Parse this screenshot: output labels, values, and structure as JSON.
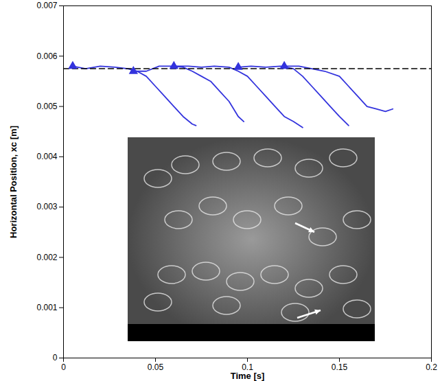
{
  "chart_data": {
    "type": "line",
    "x_label": "Time [s]",
    "y_label": "Horizontal Position, xc [m]",
    "xlim": [
      0,
      0.2
    ],
    "xticks": [
      0,
      0.05,
      0.1,
      0.15,
      0.2
    ],
    "ylim": [
      0,
      0.007
    ],
    "yticks": [
      0,
      0.001,
      0.002,
      0.003,
      0.004,
      0.005,
      0.006,
      0.007
    ],
    "grid": false,
    "series": [
      {
        "color": "#3333dd",
        "marker": "triangle",
        "line_style": "solid",
        "x": [
          0.005,
          0.012,
          0.02,
          0.028,
          0.035,
          0.04,
          0.045,
          0.05,
          0.055,
          0.06,
          0.065,
          0.07,
          0.072
        ],
        "values": [
          0.0058,
          0.00575,
          0.0058,
          0.00578,
          0.00575,
          0.0057,
          0.0056,
          0.0054,
          0.0052,
          0.005,
          0.0048,
          0.00465,
          0.00462
        ]
      },
      {
        "color": "#3333dd",
        "marker": "triangle",
        "line_style": "solid",
        "x": [
          0.038,
          0.045,
          0.052,
          0.06,
          0.065,
          0.07,
          0.075,
          0.08,
          0.085,
          0.09,
          0.095,
          0.098
        ],
        "values": [
          0.0057,
          0.0057,
          0.0058,
          0.0058,
          0.00578,
          0.0057,
          0.0056,
          0.0055,
          0.0053,
          0.0051,
          0.0048,
          0.0047
        ]
      },
      {
        "color": "#3333dd",
        "marker": "triangle",
        "line_style": "solid",
        "x": [
          0.06,
          0.068,
          0.075,
          0.082,
          0.09,
          0.095,
          0.1,
          0.105,
          0.11,
          0.115,
          0.12,
          0.125,
          0.13
        ],
        "values": [
          0.0058,
          0.0058,
          0.00578,
          0.0058,
          0.00578,
          0.0057,
          0.0056,
          0.0054,
          0.0052,
          0.005,
          0.0048,
          0.0047,
          0.00458
        ]
      },
      {
        "color": "#3333dd",
        "marker": "triangle",
        "line_style": "solid",
        "x": [
          0.095,
          0.102,
          0.11,
          0.118,
          0.125,
          0.13,
          0.135,
          0.14,
          0.145,
          0.15,
          0.155
        ],
        "values": [
          0.00578,
          0.0058,
          0.00578,
          0.0058,
          0.00575,
          0.0056,
          0.0054,
          0.0052,
          0.005,
          0.0048,
          0.00462
        ]
      },
      {
        "color": "#3333dd",
        "marker": "triangle",
        "line_style": "solid",
        "x": [
          0.12,
          0.128,
          0.135,
          0.142,
          0.15,
          0.155,
          0.16,
          0.165,
          0.17,
          0.175,
          0.179
        ],
        "values": [
          0.0058,
          0.0058,
          0.00575,
          0.0057,
          0.0056,
          0.0054,
          0.0052,
          0.005,
          0.00495,
          0.0049,
          0.00495
        ]
      },
      {
        "color": "#000000",
        "line_style": "dashed",
        "x": [
          0,
          0.2
        ],
        "values": [
          0.00575,
          0.00575
        ]
      }
    ]
  }
}
